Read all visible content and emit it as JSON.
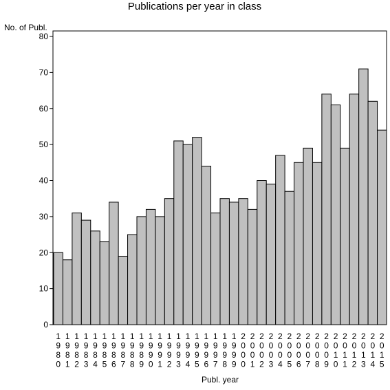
{
  "chart_data": {
    "type": "bar",
    "title": "Publications per year in class",
    "ylabel": "No. of Publ.",
    "xlabel": "Publ. year",
    "ylim": [
      0,
      80
    ],
    "yticks": [
      0,
      10,
      20,
      30,
      40,
      50,
      60,
      70,
      80
    ],
    "grid": false,
    "bar_color": "#c0c0c0",
    "categories": [
      "1980",
      "1981",
      "1982",
      "1983",
      "1984",
      "1985",
      "1986",
      "1987",
      "1988",
      "1989",
      "1990",
      "1991",
      "1992",
      "1993",
      "1994",
      "1995",
      "1996",
      "1997",
      "1998",
      "1999",
      "2000",
      "2001",
      "2002",
      "2003",
      "2004",
      "2005",
      "2006",
      "2007",
      "2008",
      "2009",
      "2010",
      "2011",
      "2012",
      "2013",
      "2014",
      "2015"
    ],
    "values": [
      20,
      18,
      31,
      29,
      26,
      23,
      34,
      19,
      25,
      30,
      32,
      30,
      35,
      51,
      50,
      52,
      44,
      31,
      35,
      34,
      35,
      32,
      40,
      39,
      47,
      37,
      45,
      49,
      45,
      64,
      61,
      49,
      64,
      71,
      62,
      54
    ]
  }
}
